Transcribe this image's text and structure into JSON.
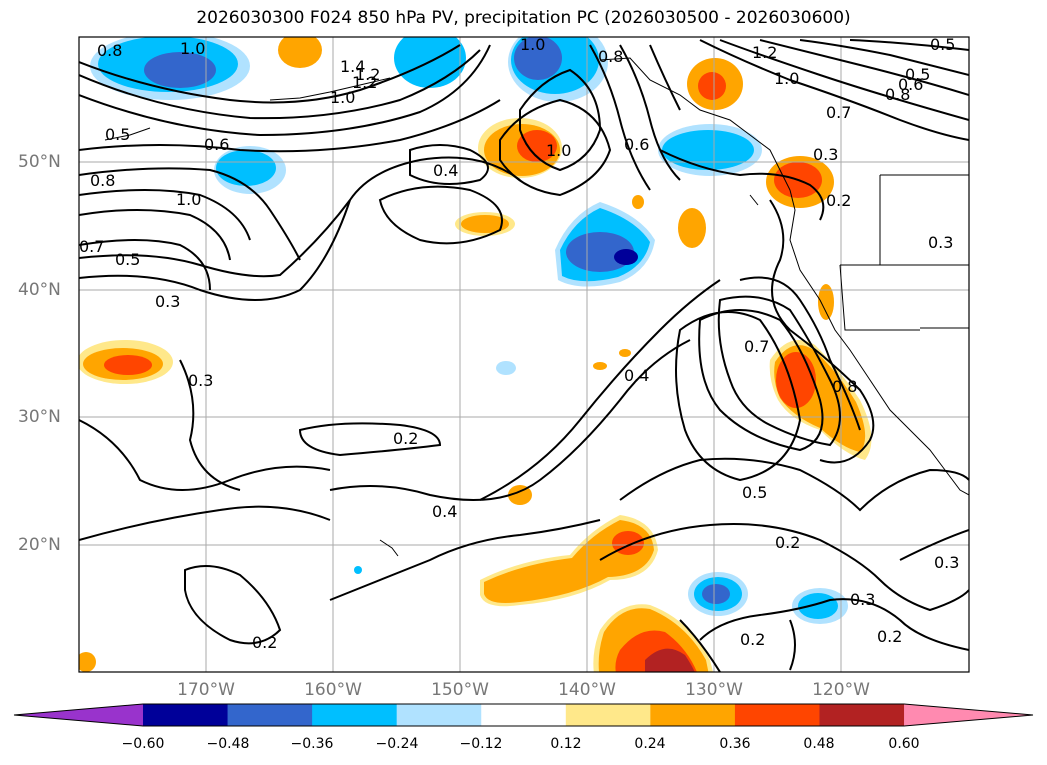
{
  "title": "2026030300 F024 850 hPa PV, precipitation PC (2026030500 - 2026030600)",
  "map": {
    "lon_labels": [
      "170°W",
      "160°W",
      "150°W",
      "140°W",
      "130°W",
      "120°W"
    ],
    "lat_labels": [
      "50°N",
      "40°N",
      "30°N",
      "20°N"
    ],
    "contour_labels": [
      "0.8",
      "1.0",
      "1.2",
      "1.4",
      "1.2",
      "1.0",
      "0.5",
      "0.6",
      "0.8",
      "1.0",
      "0.7",
      "0.5",
      "0.3",
      "0.4",
      "1.0",
      "0.6",
      "0.8",
      "1.0",
      "1.2",
      "1.0",
      "0.7",
      "0.5",
      "0.5",
      "0.6",
      "0.8",
      "0.3",
      "0.2",
      "0.3",
      "0.3",
      "0.2",
      "0.4",
      "0.4",
      "0.7",
      "0.8",
      "0.5",
      "0.2",
      "0.3",
      "0.3",
      "0.2",
      "0.2",
      "0.2"
    ]
  },
  "colorbar": {
    "ticks": [
      "−0.60",
      "−0.48",
      "−0.36",
      "−0.24",
      "−0.12",
      "0.12",
      "0.24",
      "0.36",
      "0.48",
      "0.60"
    ],
    "colors": [
      "#9933cc",
      "#000099",
      "#3366cc",
      "#00bfff",
      "#b0e2ff",
      "#ffffff",
      "#ffe88a",
      "#ffa500",
      "#ff4500",
      "#b22222",
      "#ff8ab0"
    ]
  }
}
